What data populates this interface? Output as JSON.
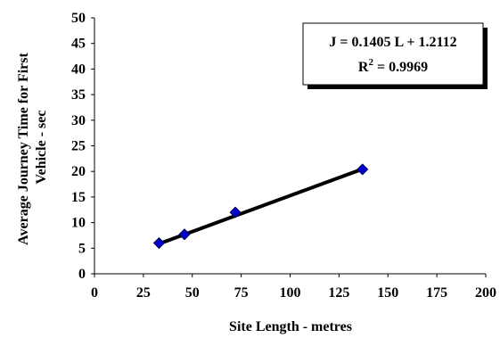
{
  "chart_data": {
    "type": "scatter",
    "xlabel": "Site  Length - metres",
    "ylabel_lines": [
      "Average Journey Time for First",
      "Vehicle - sec"
    ],
    "xlim": [
      0,
      200
    ],
    "ylim": [
      0,
      50
    ],
    "xticks": [
      0,
      25,
      50,
      75,
      100,
      125,
      150,
      175,
      200
    ],
    "yticks": [
      0,
      5,
      10,
      15,
      20,
      25,
      30,
      35,
      40,
      45,
      50
    ],
    "grid": false,
    "series": [
      {
        "x": [
          33,
          46,
          72,
          137
        ],
        "y": [
          6.0,
          7.7,
          12.0,
          20.4
        ],
        "color": "#0000CC",
        "marker": "diamond"
      }
    ],
    "trendline": {
      "slope": 0.1405,
      "intercept": 1.2112,
      "x_range": [
        33,
        137
      ],
      "color": "#000000"
    },
    "annotation": {
      "equation": "J = 0.1405 L + 1.2112",
      "r2_prefix": "R",
      "r2_sup": "2",
      "r2_value": " = 0.9969",
      "position": "top-right"
    }
  }
}
